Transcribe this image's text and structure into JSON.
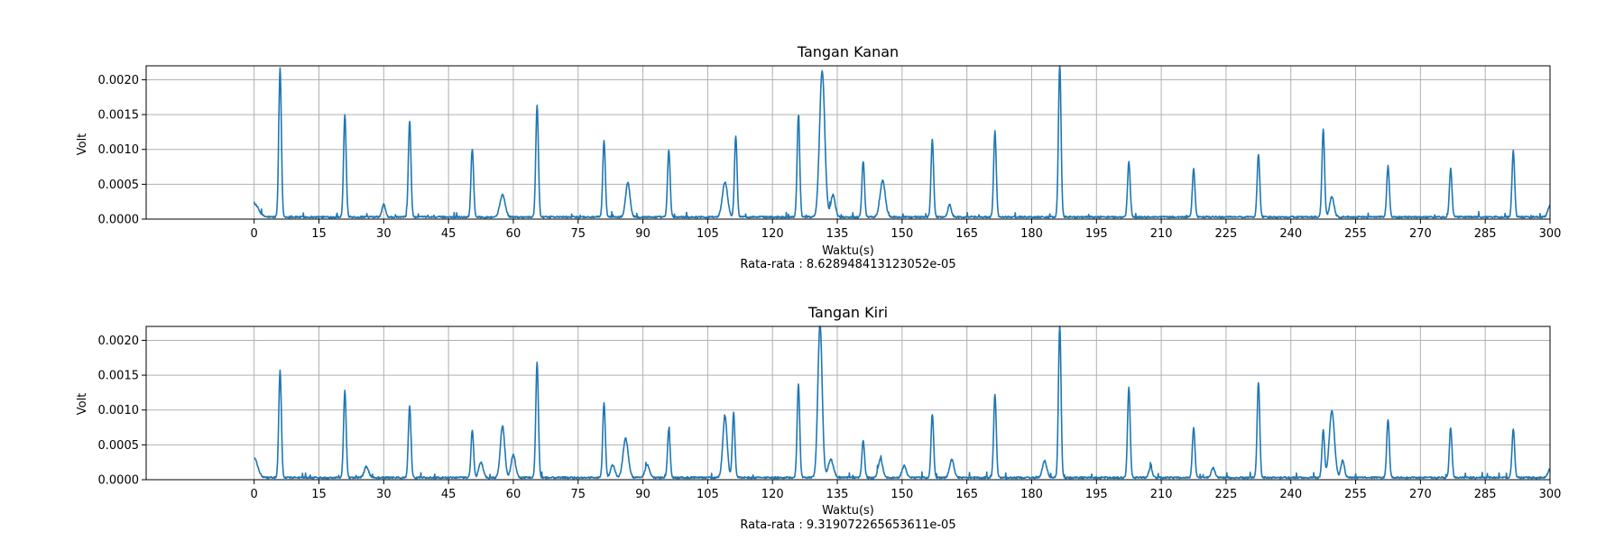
{
  "colors": {
    "line": "#1f77b4",
    "grid": "#b0b0b0",
    "axis": "#000000",
    "background": "#ffffff"
  },
  "chart_data": [
    {
      "type": "line",
      "title": "Tangan Kanan",
      "xlabel": "Waktu(s)",
      "ylabel": "Volt",
      "mean_text": "Rata-rata : 8.628948413123052e-05",
      "xlim": [
        -25,
        300
      ],
      "ylim": [
        0,
        0.0022
      ],
      "xticks": [
        0,
        15,
        30,
        45,
        60,
        75,
        90,
        105,
        120,
        135,
        150,
        165,
        180,
        195,
        210,
        225,
        240,
        255,
        270,
        285,
        300
      ],
      "yticks": [
        0.0,
        0.0005,
        0.001,
        0.0015,
        0.002
      ],
      "ytick_labels": [
        "0.0000",
        "0.0005",
        "0.0010",
        "0.0015",
        "0.0020"
      ],
      "grid": true,
      "baseline": 3e-05,
      "peaks": [
        {
          "x": 0,
          "y": 0.00019,
          "w": 1.0
        },
        {
          "x": 6,
          "y": 0.00213,
          "w": 0.3
        },
        {
          "x": 21,
          "y": 0.00147,
          "w": 0.3
        },
        {
          "x": 30,
          "y": 0.00018,
          "w": 0.4
        },
        {
          "x": 36,
          "y": 0.00138,
          "w": 0.3
        },
        {
          "x": 50.5,
          "y": 0.00097,
          "w": 0.3
        },
        {
          "x": 57.5,
          "y": 0.00032,
          "w": 0.6
        },
        {
          "x": 65.5,
          "y": 0.00161,
          "w": 0.3
        },
        {
          "x": 81,
          "y": 0.00109,
          "w": 0.3
        },
        {
          "x": 86.5,
          "y": 0.0005,
          "w": 0.5
        },
        {
          "x": 96,
          "y": 0.00096,
          "w": 0.3
        },
        {
          "x": 109,
          "y": 0.0005,
          "w": 0.6
        },
        {
          "x": 111.5,
          "y": 0.00116,
          "w": 0.3
        },
        {
          "x": 126,
          "y": 0.00146,
          "w": 0.3
        },
        {
          "x": 131.5,
          "y": 0.0021,
          "w": 0.6
        },
        {
          "x": 134,
          "y": 0.00032,
          "w": 0.5
        },
        {
          "x": 141,
          "y": 0.0008,
          "w": 0.3
        },
        {
          "x": 145.5,
          "y": 0.00052,
          "w": 0.6
        },
        {
          "x": 157,
          "y": 0.00111,
          "w": 0.3
        },
        {
          "x": 161,
          "y": 0.00018,
          "w": 0.4
        },
        {
          "x": 171.5,
          "y": 0.00123,
          "w": 0.3
        },
        {
          "x": 186.5,
          "y": 0.0022,
          "w": 0.3
        },
        {
          "x": 202.5,
          "y": 0.00079,
          "w": 0.3
        },
        {
          "x": 217.5,
          "y": 0.00069,
          "w": 0.3
        },
        {
          "x": 232.5,
          "y": 0.0009,
          "w": 0.3
        },
        {
          "x": 247.5,
          "y": 0.00126,
          "w": 0.3
        },
        {
          "x": 249.5,
          "y": 0.00029,
          "w": 0.5
        },
        {
          "x": 262.5,
          "y": 0.00073,
          "w": 0.3
        },
        {
          "x": 277,
          "y": 0.00069,
          "w": 0.3
        },
        {
          "x": 291.5,
          "y": 0.00095,
          "w": 0.3
        },
        {
          "x": 300,
          "y": 0.00016,
          "w": 0.5
        }
      ]
    },
    {
      "type": "line",
      "title": "Tangan Kiri",
      "xlabel": "Waktu(s)",
      "ylabel": "Volt",
      "mean_text": "Rata-rata : 9.319072265653611e-05",
      "xlim": [
        -25,
        300
      ],
      "ylim": [
        0,
        0.0022
      ],
      "xticks": [
        0,
        15,
        30,
        45,
        60,
        75,
        90,
        105,
        120,
        135,
        150,
        165,
        180,
        195,
        210,
        225,
        240,
        255,
        270,
        285,
        300
      ],
      "yticks": [
        0.0,
        0.0005,
        0.001,
        0.0015,
        0.002
      ],
      "ytick_labels": [
        "0.0000",
        "0.0005",
        "0.0010",
        "0.0015",
        "0.0020"
      ],
      "grid": true,
      "baseline": 3e-05,
      "peaks": [
        {
          "x": 0,
          "y": 0.00028,
          "w": 0.8
        },
        {
          "x": 6,
          "y": 0.00153,
          "w": 0.3
        },
        {
          "x": 21,
          "y": 0.00125,
          "w": 0.3
        },
        {
          "x": 26,
          "y": 0.00016,
          "w": 0.5
        },
        {
          "x": 36,
          "y": 0.00103,
          "w": 0.3
        },
        {
          "x": 50.5,
          "y": 0.00068,
          "w": 0.3
        },
        {
          "x": 52.5,
          "y": 0.00022,
          "w": 0.5
        },
        {
          "x": 57.5,
          "y": 0.00074,
          "w": 0.5
        },
        {
          "x": 60,
          "y": 0.00033,
          "w": 0.5
        },
        {
          "x": 65.5,
          "y": 0.00166,
          "w": 0.3
        },
        {
          "x": 81,
          "y": 0.00108,
          "w": 0.3
        },
        {
          "x": 83,
          "y": 0.00018,
          "w": 0.5
        },
        {
          "x": 86,
          "y": 0.00056,
          "w": 0.6
        },
        {
          "x": 91,
          "y": 0.00018,
          "w": 0.5
        },
        {
          "x": 96,
          "y": 0.00069,
          "w": 0.3
        },
        {
          "x": 109,
          "y": 0.00088,
          "w": 0.5
        },
        {
          "x": 111,
          "y": 0.00093,
          "w": 0.3
        },
        {
          "x": 126,
          "y": 0.00133,
          "w": 0.3
        },
        {
          "x": 131,
          "y": 0.0022,
          "w": 0.5
        },
        {
          "x": 133.5,
          "y": 0.00026,
          "w": 0.6
        },
        {
          "x": 141,
          "y": 0.00054,
          "w": 0.3
        },
        {
          "x": 145,
          "y": 0.00027,
          "w": 0.5
        },
        {
          "x": 150.5,
          "y": 0.00017,
          "w": 0.5
        },
        {
          "x": 157,
          "y": 0.00091,
          "w": 0.3
        },
        {
          "x": 161.5,
          "y": 0.00026,
          "w": 0.5
        },
        {
          "x": 171.5,
          "y": 0.0012,
          "w": 0.3
        },
        {
          "x": 183,
          "y": 0.00024,
          "w": 0.5
        },
        {
          "x": 186.5,
          "y": 0.0022,
          "w": 0.3
        },
        {
          "x": 202.5,
          "y": 0.00129,
          "w": 0.3
        },
        {
          "x": 207.5,
          "y": 0.00014,
          "w": 0.4
        },
        {
          "x": 217.5,
          "y": 0.00072,
          "w": 0.3
        },
        {
          "x": 222,
          "y": 0.00014,
          "w": 0.4
        },
        {
          "x": 232.5,
          "y": 0.00137,
          "w": 0.3
        },
        {
          "x": 247.5,
          "y": 0.00068,
          "w": 0.3
        },
        {
          "x": 249.5,
          "y": 0.00096,
          "w": 0.6
        },
        {
          "x": 252,
          "y": 0.00025,
          "w": 0.4
        },
        {
          "x": 262.5,
          "y": 0.00084,
          "w": 0.3
        },
        {
          "x": 277,
          "y": 0.00072,
          "w": 0.3
        },
        {
          "x": 291.5,
          "y": 0.0007,
          "w": 0.3
        },
        {
          "x": 300,
          "y": 0.00012,
          "w": 0.5
        }
      ]
    }
  ]
}
